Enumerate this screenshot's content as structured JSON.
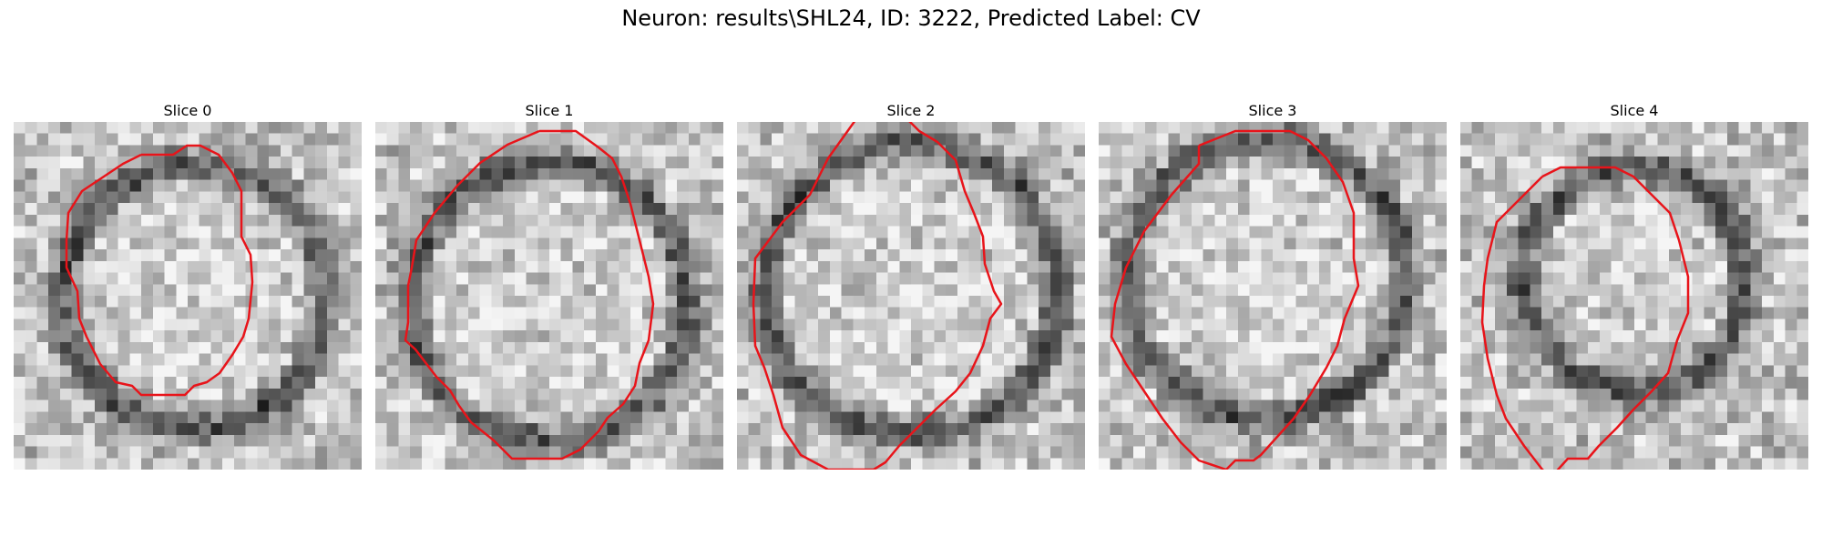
{
  "figure": {
    "title": "Neuron: results\\SHL24, ID: 3222, Predicted Label: CV",
    "contour_color": "#e8141a"
  },
  "panels": [
    {
      "title": "Slice 0"
    },
    {
      "title": "Slice 1"
    },
    {
      "title": "Slice 2"
    },
    {
      "title": "Slice 3"
    },
    {
      "title": "Slice 4"
    }
  ]
}
